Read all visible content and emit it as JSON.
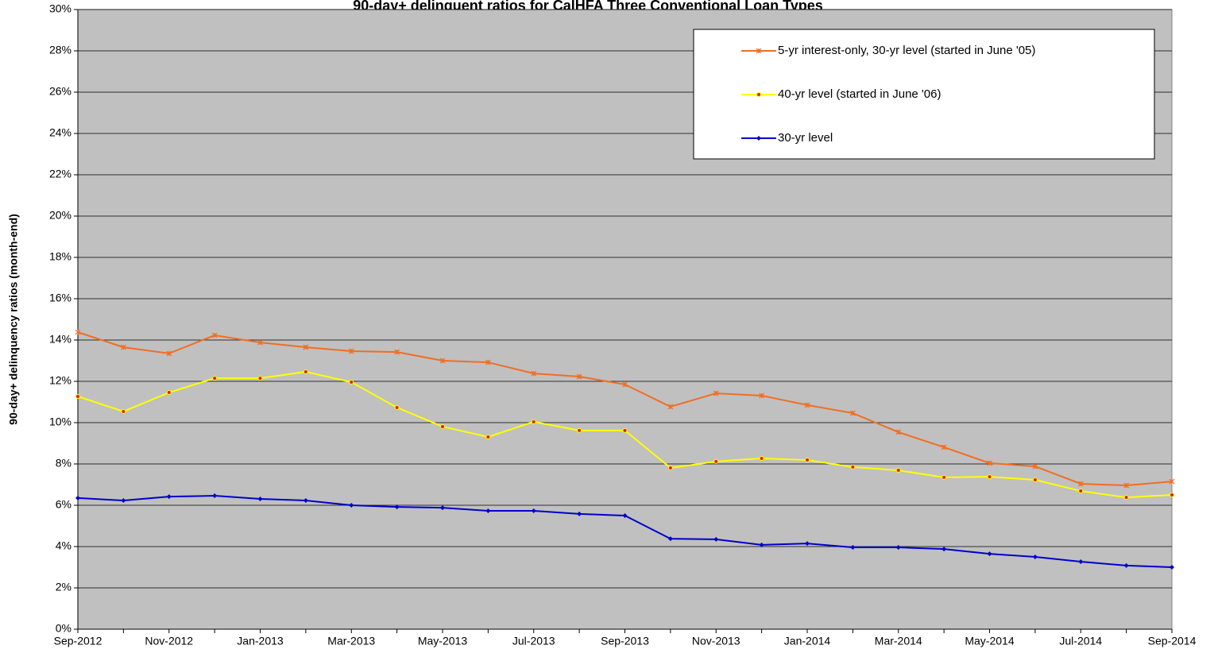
{
  "chart_data": {
    "type": "line",
    "title": "90-day+ delinquent ratios for CalHFA Three Conventional Loan Types",
    "y_label": "90-day+ delinquency ratios (month-end)",
    "categories": [
      "Sep-2012",
      null,
      "Nov-2012",
      null,
      "Jan-2013",
      null,
      "Mar-2013",
      null,
      "May-2013",
      null,
      "Jul-2013",
      null,
      "Sep-2013",
      null,
      "Nov-2013",
      null,
      "Jan-2014",
      null,
      "Mar-2014",
      null,
      "May-2014",
      null,
      "Jul-2014",
      null,
      "Sep-2014"
    ],
    "series": [
      {
        "name": "5-yr interest-only, 30-yr level (started in June '05)",
        "color": "#f26d21",
        "marker": "x",
        "values": [
          14.38,
          13.65,
          13.35,
          14.23,
          13.88,
          13.65,
          13.46,
          13.42,
          13.0,
          12.92,
          12.38,
          12.23,
          11.85,
          10.77,
          11.42,
          11.31,
          10.85,
          10.46,
          9.54,
          8.81,
          8.04,
          7.88,
          7.04,
          6.96,
          7.15
        ]
      },
      {
        "name": "40-yr level (started in June '06)",
        "color": "#ffff00",
        "marker": "dot",
        "values": [
          11.27,
          10.54,
          11.46,
          12.15,
          12.15,
          12.46,
          11.96,
          10.73,
          9.81,
          9.31,
          10.04,
          9.62,
          9.62,
          7.81,
          8.12,
          8.27,
          8.19,
          7.85,
          7.69,
          7.35,
          7.38,
          7.23,
          6.69,
          6.38,
          6.5
        ]
      },
      {
        "name": "30-yr level",
        "color": "#0000cc",
        "marker": "diamond",
        "values": [
          6.35,
          6.23,
          6.42,
          6.46,
          6.31,
          6.23,
          6.0,
          5.92,
          5.88,
          5.73,
          5.73,
          5.58,
          5.5,
          4.38,
          4.35,
          4.08,
          4.15,
          3.96,
          3.96,
          3.88,
          3.65,
          3.5,
          3.27,
          3.08,
          3.0
        ]
      }
    ],
    "ylim": [
      0,
      30
    ],
    "yticks": [
      {
        "value": 0,
        "label": "0%"
      },
      {
        "value": 2,
        "label": "2%"
      },
      {
        "value": 4,
        "label": "4%"
      },
      {
        "value": 6,
        "label": "6%"
      },
      {
        "value": 8,
        "label": "8%"
      },
      {
        "value": 10,
        "label": "10%"
      },
      {
        "value": 12,
        "label": "12%"
      },
      {
        "value": 14,
        "label": "14%"
      },
      {
        "value": 16,
        "label": "16%"
      },
      {
        "value": 18,
        "label": "18%"
      },
      {
        "value": 20,
        "label": "20%"
      },
      {
        "value": 22,
        "label": "22%"
      },
      {
        "value": 24,
        "label": "24%"
      },
      {
        "value": 26,
        "label": "26%"
      },
      {
        "value": 28,
        "label": "28%"
      },
      {
        "value": 30,
        "label": "30%"
      }
    ],
    "grid": true,
    "legend": "top-right",
    "background": "#c0c0c0"
  }
}
